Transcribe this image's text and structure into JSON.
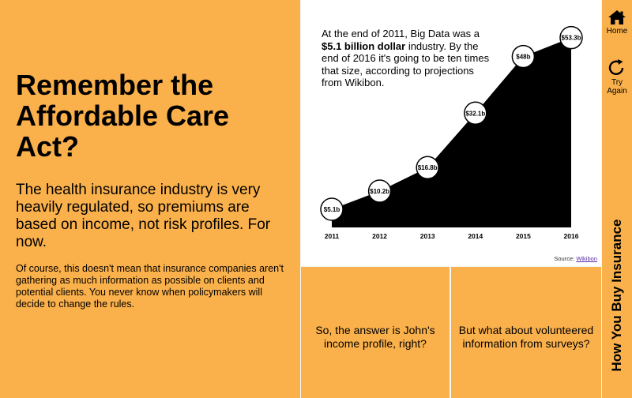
{
  "left": {
    "headline": "Remember the Affordable Care Act?",
    "lead": "The health insurance industry is very heavily regulated, so premiums are based on income, not risk profiles. For now.",
    "body": "Of course, this doesn't mean that insurance companies aren't gathering as much information as possible on clients and potential clients. You never know when policymakers will decide to change the rules."
  },
  "chart_note": {
    "part1": "At the end of 2011, Big Data was a ",
    "bold": "$5.1 billion dollar",
    "part2": " industry. By the end of 2016 it's going to be ten times that size, according to projections from Wikibon."
  },
  "source": {
    "label": "Source: ",
    "link": "Wikibon"
  },
  "choices": [
    "So, the answer is John's income profile, right?",
    "But what about volunteered information from surveys?"
  ],
  "nav": {
    "home": "Home",
    "try_again": "Try Again",
    "section_title": "How You Buy Insurance"
  },
  "colors": {
    "orange": "#fbb14b",
    "area": "#000000"
  },
  "chart_data": {
    "type": "area",
    "x": [
      "2011",
      "2012",
      "2013",
      "2014",
      "2015",
      "2016"
    ],
    "values": [
      5.1,
      10.2,
      16.8,
      32.1,
      48,
      53.3
    ],
    "labels": [
      "$5.1b",
      "$10.2b",
      "$16.8b",
      "$32.1b",
      "$48b",
      "$53.3b"
    ],
    "title": "",
    "xlabel": "",
    "ylabel": "",
    "ylim": [
      0,
      55
    ],
    "grid": false,
    "legend": "none"
  }
}
